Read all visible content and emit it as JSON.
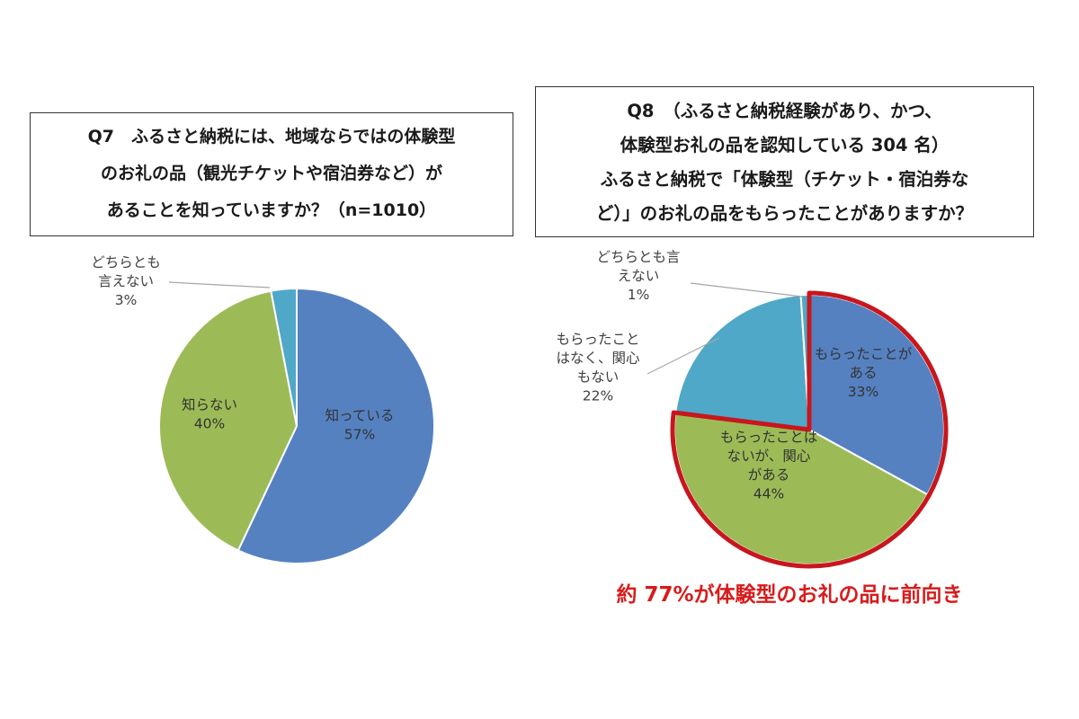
{
  "q7": {
    "lines": [
      "Q7　ふるさと納税には、地域ならではの体験型",
      "のお礼の品（観光チケットや宿泊券など）が",
      "あることを知っていますか？（n=1010）"
    ]
  },
  "q8": {
    "lines": [
      "Q8　（ふるさと納税経験があり、かつ、",
      "体験型お礼の品を認知している 304 名）",
      "ふるさと納税で「体験型（チケット・宿泊券な",
      "ど）」のお礼の品をもらったことがありますか？"
    ]
  },
  "note": "約 77%が体験型のお礼の品に前向き",
  "colors": {
    "blue": "#5581c1",
    "green": "#9cbb57",
    "cyan": "#4fa8c8",
    "highlight": "#c8161d"
  },
  "chart_data": [
    {
      "type": "pie",
      "title": "",
      "slices": [
        {
          "label_lines": [
            "知っている"
          ],
          "value": 57,
          "pct": "57%",
          "color": "#5581c1"
        },
        {
          "label_lines": [
            "知らない"
          ],
          "value": 40,
          "pct": "40%",
          "color": "#9cbb57"
        },
        {
          "label_lines": [
            "どちらとも",
            "言えない"
          ],
          "value": 3,
          "pct": "3%",
          "color": "#4fa8c8"
        }
      ]
    },
    {
      "type": "pie",
      "title": "",
      "highlight": [
        "もらったことがある",
        "もらったことはないが、関心がある"
      ],
      "slices": [
        {
          "label_lines": [
            "もらったことが",
            "ある"
          ],
          "value": 33,
          "pct": "33%",
          "color": "#5581c1"
        },
        {
          "label_lines": [
            "もらったことは",
            "ないが、関心",
            "がある"
          ],
          "value": 44,
          "pct": "44%",
          "color": "#9cbb57"
        },
        {
          "label_lines": [
            "もらったこと",
            "はなく、関心",
            "もない"
          ],
          "value": 22,
          "pct": "22%",
          "color": "#4fa8c8"
        },
        {
          "label_lines": [
            "どちらとも言",
            "えない"
          ],
          "value": 1,
          "pct": "1%",
          "color": "#4fa8c8"
        }
      ]
    }
  ]
}
